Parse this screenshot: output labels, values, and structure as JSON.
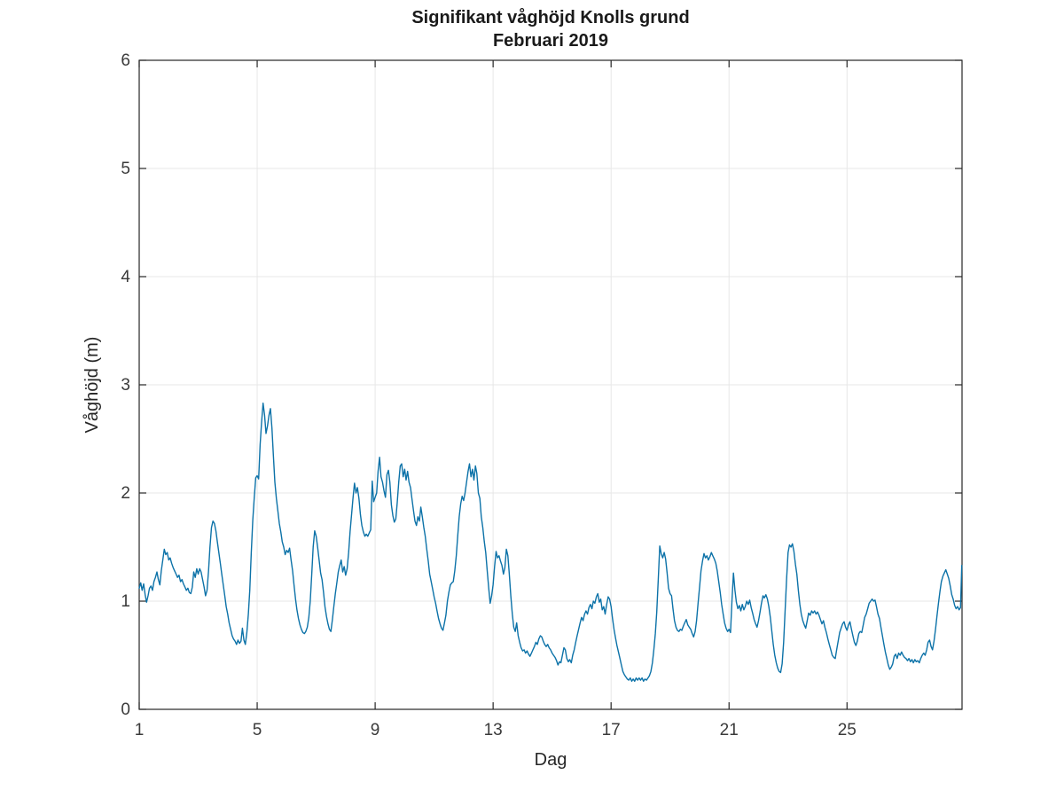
{
  "window": {
    "background": "#ffffff"
  },
  "chart_data": {
    "type": "line",
    "title": "Signifikant våghöjd Knolls grund",
    "subtitle": "Februari 2019",
    "xlabel": "Dag",
    "ylabel": "Våghöjd (m)",
    "xlim": [
      1,
      28.9
    ],
    "ylim": [
      0,
      6
    ],
    "x_ticks": [
      1,
      5,
      9,
      13,
      17,
      21,
      25
    ],
    "y_ticks": [
      0,
      1,
      2,
      3,
      4,
      5,
      6
    ],
    "grid": true,
    "box": true,
    "tick_direction": "in",
    "legend": "none",
    "line_color": "#0c72a8",
    "grid_color": "#e7e7e7",
    "axis_color": "#262626",
    "series": [
      {
        "name": "Signifikant våghöjd (m)",
        "x0": 1,
        "dx": 0.05,
        "values": [
          1.12,
          1.17,
          1.1,
          1.16,
          1.06,
          0.99,
          1.05,
          1.12,
          1.14,
          1.1,
          1.18,
          1.22,
          1.27,
          1.2,
          1.15,
          1.28,
          1.38,
          1.48,
          1.43,
          1.45,
          1.38,
          1.4,
          1.35,
          1.31,
          1.28,
          1.25,
          1.22,
          1.24,
          1.18,
          1.2,
          1.16,
          1.13,
          1.1,
          1.12,
          1.08,
          1.07,
          1.13,
          1.27,
          1.22,
          1.3,
          1.25,
          1.3,
          1.27,
          1.2,
          1.13,
          1.05,
          1.1,
          1.28,
          1.5,
          1.68,
          1.74,
          1.72,
          1.65,
          1.55,
          1.45,
          1.35,
          1.25,
          1.15,
          1.05,
          0.95,
          0.88,
          0.8,
          0.74,
          0.68,
          0.65,
          0.63,
          0.6,
          0.64,
          0.61,
          0.63,
          0.75,
          0.64,
          0.6,
          0.71,
          0.88,
          1.1,
          1.45,
          1.75,
          1.95,
          2.14,
          2.16,
          2.13,
          2.45,
          2.65,
          2.83,
          2.72,
          2.55,
          2.62,
          2.72,
          2.78,
          2.6,
          2.35,
          2.1,
          1.95,
          1.84,
          1.72,
          1.64,
          1.55,
          1.5,
          1.43,
          1.47,
          1.45,
          1.49,
          1.38,
          1.28,
          1.15,
          1.02,
          0.92,
          0.84,
          0.78,
          0.74,
          0.71,
          0.7,
          0.72,
          0.76,
          0.85,
          1.0,
          1.25,
          1.5,
          1.65,
          1.6,
          1.5,
          1.38,
          1.26,
          1.2,
          1.08,
          0.95,
          0.86,
          0.79,
          0.74,
          0.72,
          0.83,
          0.95,
          1.07,
          1.17,
          1.27,
          1.33,
          1.38,
          1.27,
          1.32,
          1.24,
          1.3,
          1.45,
          1.64,
          1.8,
          1.95,
          2.09,
          2.0,
          2.05,
          1.95,
          1.8,
          1.7,
          1.64,
          1.6,
          1.62,
          1.6,
          1.63,
          1.66,
          2.11,
          1.92,
          1.96,
          2.0,
          2.2,
          2.33,
          2.15,
          2.1,
          2.02,
          1.96,
          2.17,
          2.21,
          2.1,
          1.89,
          1.79,
          1.73,
          1.76,
          1.91,
          2.1,
          2.25,
          2.27,
          2.15,
          2.22,
          2.12,
          2.2,
          2.1,
          2.05,
          1.94,
          1.84,
          1.74,
          1.7,
          1.78,
          1.74,
          1.87,
          1.78,
          1.68,
          1.6,
          1.48,
          1.37,
          1.25,
          1.18,
          1.11,
          1.04,
          0.98,
          0.91,
          0.84,
          0.79,
          0.75,
          0.73,
          0.8,
          0.87,
          1.0,
          1.08,
          1.15,
          1.17,
          1.18,
          1.28,
          1.42,
          1.6,
          1.78,
          1.9,
          1.97,
          1.93,
          2.0,
          2.1,
          2.2,
          2.27,
          2.15,
          2.22,
          2.12,
          2.25,
          2.18,
          2.0,
          1.95,
          1.78,
          1.68,
          1.55,
          1.45,
          1.28,
          1.12,
          0.98,
          1.05,
          1.15,
          1.32,
          1.46,
          1.4,
          1.42,
          1.37,
          1.33,
          1.25,
          1.31,
          1.48,
          1.42,
          1.25,
          1.05,
          0.88,
          0.76,
          0.72,
          0.8,
          0.68,
          0.62,
          0.57,
          0.54,
          0.55,
          0.52,
          0.54,
          0.51,
          0.49,
          0.52,
          0.55,
          0.58,
          0.62,
          0.6,
          0.65,
          0.68,
          0.67,
          0.63,
          0.6,
          0.58,
          0.6,
          0.57,
          0.55,
          0.52,
          0.5,
          0.48,
          0.45,
          0.41,
          0.44,
          0.43,
          0.5,
          0.57,
          0.55,
          0.47,
          0.44,
          0.46,
          0.43,
          0.5,
          0.55,
          0.62,
          0.68,
          0.74,
          0.8,
          0.85,
          0.82,
          0.88,
          0.91,
          0.88,
          0.94,
          0.97,
          0.93,
          1.0,
          0.98,
          1.04,
          1.07,
          0.99,
          1.02,
          0.92,
          0.95,
          0.88,
          0.97,
          1.04,
          1.02,
          0.95,
          0.84,
          0.74,
          0.66,
          0.59,
          0.53,
          0.47,
          0.41,
          0.35,
          0.32,
          0.3,
          0.28,
          0.27,
          0.29,
          0.26,
          0.28,
          0.26,
          0.29,
          0.27,
          0.29,
          0.27,
          0.29,
          0.26,
          0.28,
          0.27,
          0.29,
          0.31,
          0.35,
          0.43,
          0.55,
          0.7,
          0.9,
          1.2,
          1.51,
          1.44,
          1.4,
          1.45,
          1.39,
          1.26,
          1.12,
          1.07,
          1.05,
          0.93,
          0.82,
          0.76,
          0.73,
          0.72,
          0.74,
          0.73,
          0.77,
          0.8,
          0.83,
          0.78,
          0.76,
          0.74,
          0.7,
          0.67,
          0.72,
          0.82,
          0.98,
          1.13,
          1.28,
          1.37,
          1.44,
          1.4,
          1.42,
          1.38,
          1.41,
          1.45,
          1.42,
          1.39,
          1.35,
          1.28,
          1.18,
          1.08,
          0.97,
          0.88,
          0.8,
          0.75,
          0.72,
          0.74,
          0.71,
          1.02,
          1.26,
          1.1,
          0.99,
          0.93,
          0.96,
          0.91,
          0.97,
          0.92,
          0.95,
          1.0,
          0.97,
          1.01,
          0.94,
          0.89,
          0.83,
          0.79,
          0.76,
          0.82,
          0.9,
          0.98,
          1.05,
          1.03,
          1.06,
          1.02,
          0.95,
          0.85,
          0.72,
          0.6,
          0.5,
          0.43,
          0.38,
          0.35,
          0.34,
          0.42,
          0.62,
          0.9,
          1.2,
          1.45,
          1.52,
          1.5,
          1.53,
          1.46,
          1.34,
          1.25,
          1.1,
          0.97,
          0.88,
          0.82,
          0.78,
          0.75,
          0.82,
          0.89,
          0.87,
          0.91,
          0.89,
          0.91,
          0.88,
          0.9,
          0.87,
          0.83,
          0.79,
          0.82,
          0.76,
          0.71,
          0.65,
          0.6,
          0.55,
          0.5,
          0.48,
          0.47,
          0.55,
          0.63,
          0.71,
          0.75,
          0.79,
          0.81,
          0.76,
          0.73,
          0.78,
          0.81,
          0.74,
          0.68,
          0.62,
          0.59,
          0.63,
          0.7,
          0.72,
          0.71,
          0.78,
          0.85,
          0.88,
          0.93,
          0.98,
          1.0,
          1.02,
          1.0,
          1.01,
          0.95,
          0.88,
          0.84,
          0.76,
          0.68,
          0.6,
          0.53,
          0.47,
          0.41,
          0.37,
          0.39,
          0.42,
          0.49,
          0.51,
          0.47,
          0.52,
          0.5,
          0.53,
          0.5,
          0.48,
          0.47,
          0.45,
          0.47,
          0.44,
          0.46,
          0.43,
          0.46,
          0.44,
          0.45,
          0.43,
          0.47,
          0.5,
          0.52,
          0.5,
          0.55,
          0.62,
          0.64,
          0.58,
          0.55,
          0.63,
          0.74,
          0.86,
          0.98,
          1.09,
          1.18,
          1.23,
          1.26,
          1.29,
          1.25,
          1.21,
          1.14,
          1.06,
          1.02,
          0.96,
          0.93,
          0.95,
          0.92,
          0.94
        ],
        "tail": [
          [
            28.89,
            1.33
          ]
        ]
      }
    ]
  }
}
